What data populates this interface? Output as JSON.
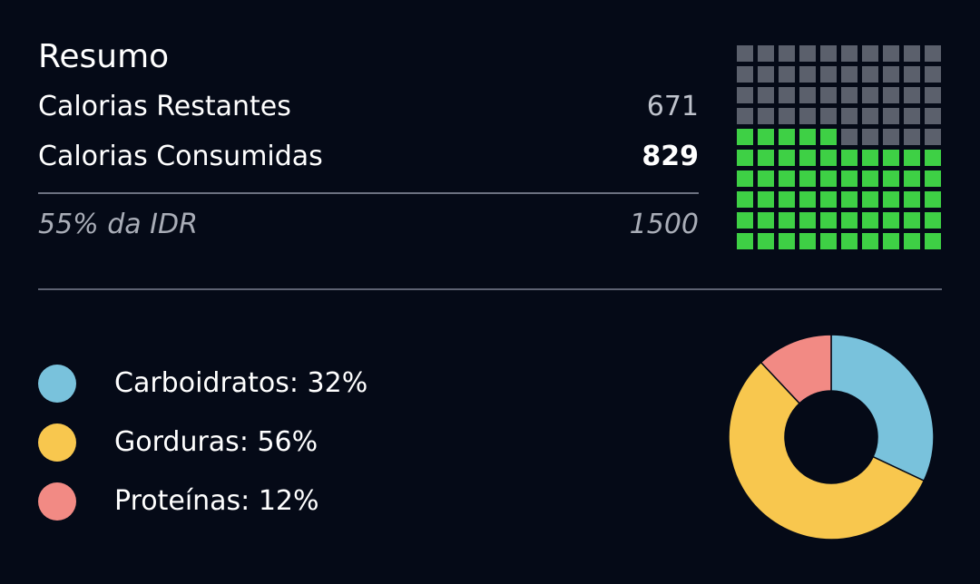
{
  "summary": {
    "title": "Resumo",
    "remaining_label": "Calorias Restantes",
    "remaining_value": "671",
    "consumed_label": "Calorias Consumidas",
    "consumed_value": "829",
    "idr_label": "55% da IDR",
    "idr_value": "1500"
  },
  "waffle": {
    "total_cells": 100,
    "filled_cells": 55,
    "filled_color": "#3ed045",
    "empty_color": "#5b606c"
  },
  "macros": {
    "items": [
      {
        "label": "Carboidratos: 32%",
        "percent": 32,
        "color": "#79c2dc"
      },
      {
        "label": "Gorduras: 56%",
        "percent": 56,
        "color": "#f8c74e"
      },
      {
        "label": "Proteínas: 12%",
        "percent": 12,
        "color": "#f28a84"
      }
    ]
  },
  "chart_data": {
    "type": "pie",
    "categories": [
      "Carboidratos",
      "Gorduras",
      "Proteínas"
    ],
    "values": [
      32,
      56,
      12
    ],
    "colors": [
      "#79c2dc",
      "#f8c74e",
      "#f28a84"
    ],
    "donut": true
  }
}
